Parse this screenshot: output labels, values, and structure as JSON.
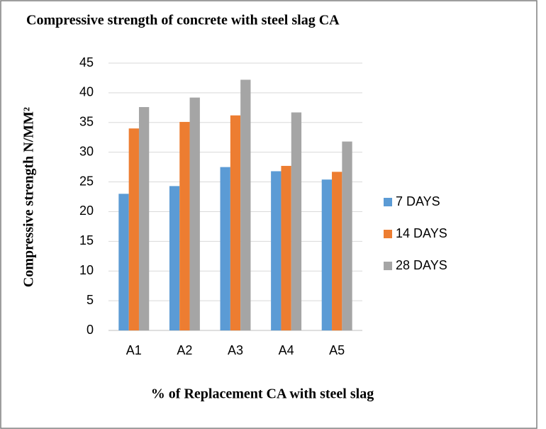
{
  "chart_data": {
    "type": "bar",
    "title": "Compressive strength of concrete  with steel slag CA",
    "x_label": "%  of Replacement CA with steel slag",
    "y_label": "Compressive strength N/MM²",
    "categories": [
      "A1",
      "A2",
      "A3",
      "A4",
      "A5"
    ],
    "series": [
      {
        "name": "7 DAYS",
        "color": "#5b9bd5",
        "values": [
          23,
          24.3,
          27.5,
          26.8,
          25.4
        ]
      },
      {
        "name": "14 DAYS",
        "color": "#ed7d31",
        "values": [
          34,
          35.1,
          36.2,
          27.7,
          26.7
        ]
      },
      {
        "name": "28 DAYS",
        "color": "#a5a5a5",
        "values": [
          37.6,
          39.2,
          42.2,
          36.7,
          31.8
        ]
      }
    ],
    "ylim": [
      0,
      45
    ],
    "yticks": [
      0,
      5,
      10,
      15,
      20,
      25,
      30,
      35,
      40,
      45
    ],
    "grid": true,
    "legend": "right"
  }
}
